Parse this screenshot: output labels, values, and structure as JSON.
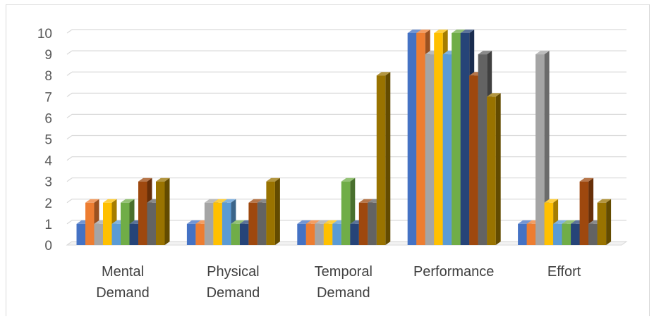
{
  "chart_data": {
    "type": "bar",
    "categories": [
      [
        "Mental",
        "Demand"
      ],
      [
        "Physical",
        "Demand"
      ],
      [
        "Temporal",
        "Demand"
      ],
      [
        "Performance"
      ],
      [
        "Effort"
      ]
    ],
    "ylim": [
      0,
      10
    ],
    "yticks": [
      "0",
      "1",
      "2",
      "3",
      "4",
      "5",
      "6",
      "7",
      "8",
      "9",
      "10"
    ],
    "grid": true,
    "style": "3d-clustered-column",
    "series": [
      {
        "color": "#4472c4",
        "values": [
          1,
          1,
          1,
          10,
          1
        ]
      },
      {
        "color": "#ed7d31",
        "values": [
          2,
          1,
          1,
          10,
          1
        ]
      },
      {
        "color": "#a5a5a5",
        "values": [
          1,
          2,
          1,
          9,
          9
        ]
      },
      {
        "color": "#ffc000",
        "values": [
          2,
          2,
          1,
          10,
          2
        ]
      },
      {
        "color": "#5b9bd5",
        "values": [
          1,
          2,
          1,
          9,
          1
        ]
      },
      {
        "color": "#70ad47",
        "values": [
          2,
          1,
          3,
          10,
          1
        ]
      },
      {
        "color": "#264478",
        "values": [
          1,
          1,
          1,
          10,
          1
        ]
      },
      {
        "color": "#9e480e",
        "values": [
          3,
          2,
          2,
          8,
          3
        ]
      },
      {
        "color": "#636363",
        "values": [
          2,
          2,
          2,
          9,
          1
        ]
      },
      {
        "color": "#997300",
        "values": [
          3,
          3,
          8,
          7,
          2
        ]
      }
    ]
  }
}
